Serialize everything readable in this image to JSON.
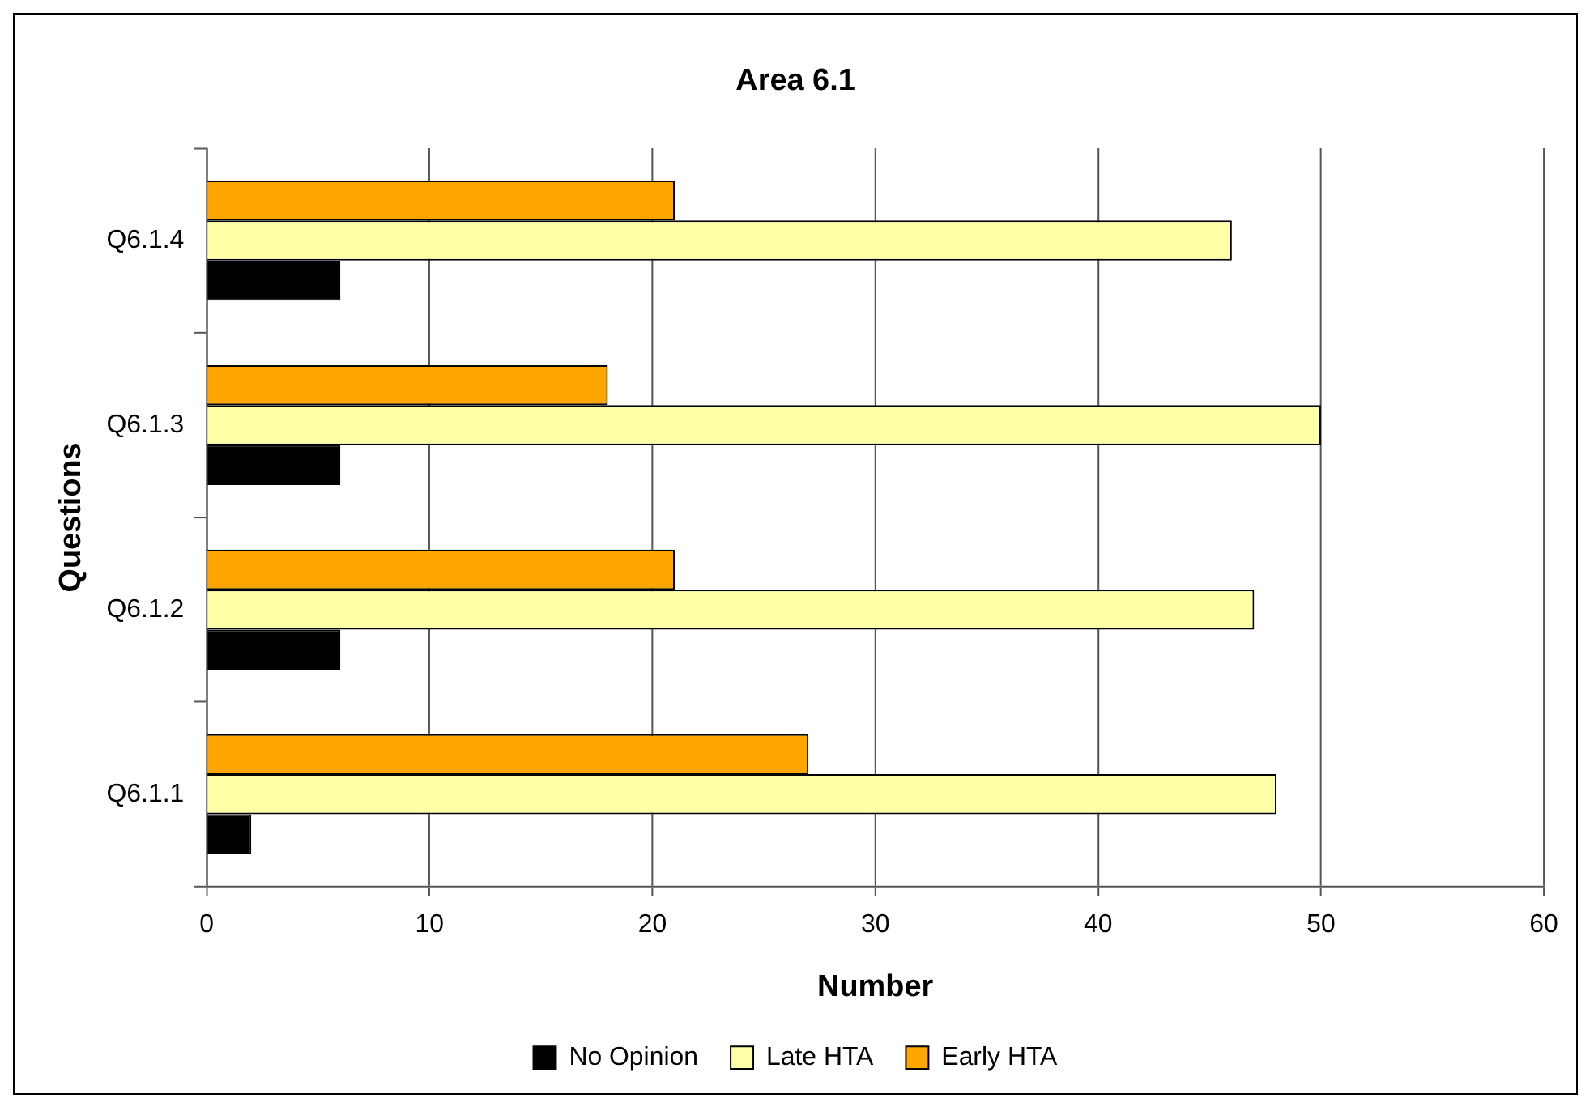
{
  "chart_data": {
    "type": "bar",
    "orientation": "horizontal",
    "title": "Area 6.1",
    "xlabel": "Number",
    "ylabel": "Questions",
    "categories": [
      "Q6.1.4",
      "Q6.1.3",
      "Q6.1.2",
      "Q6.1.1"
    ],
    "series": [
      {
        "name": "No Opinion",
        "color": "#000000",
        "values": [
          6,
          6,
          6,
          2
        ]
      },
      {
        "name": "Late HTA",
        "color": "#ffffa8",
        "values": [
          46,
          50,
          47,
          48
        ]
      },
      {
        "name": "Early HTA",
        "color": "#ffa500",
        "values": [
          21,
          18,
          21,
          27
        ]
      }
    ],
    "xlim": [
      0,
      60
    ],
    "xticks": [
      0,
      10,
      20,
      30,
      40,
      50,
      60
    ],
    "grid": "x",
    "legend": "bottom"
  }
}
